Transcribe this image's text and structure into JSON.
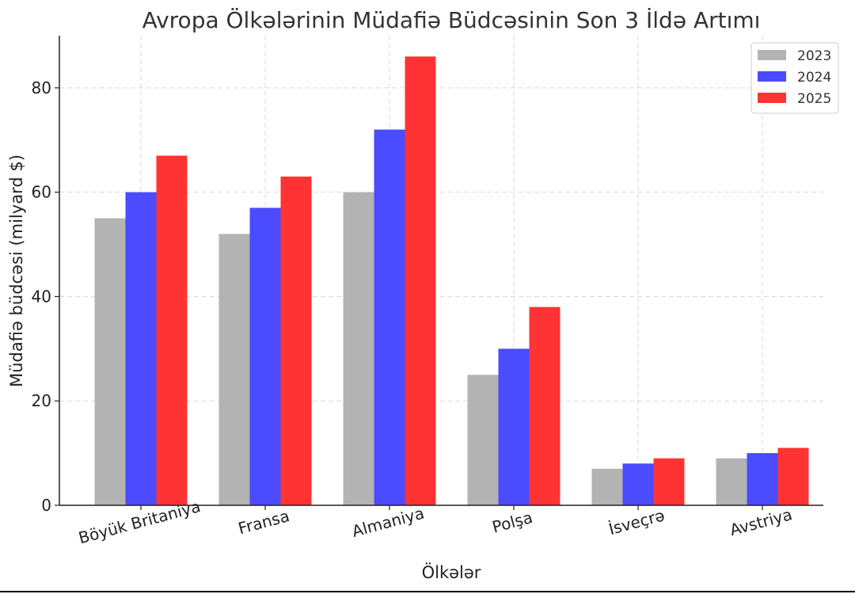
{
  "chart_data": {
    "type": "bar",
    "title": "Avropa Ölkələrinin Müdafiə Büdcəsinin Son 3 İldə Artımı",
    "xlabel": "Ölkələr",
    "ylabel": "Müdafiə büdcəsi (milyard $)",
    "categories": [
      "Böyük Britaniya",
      "Fransa",
      "Almaniya",
      "Polşa",
      "İsveçrə",
      "Avstriya"
    ],
    "series": [
      {
        "name": "2023",
        "color": "#b3b3b3",
        "values": [
          55,
          52,
          60,
          25,
          7,
          9
        ]
      },
      {
        "name": "2024",
        "color": "#4b4bff",
        "values": [
          60,
          57,
          72,
          30,
          8,
          10
        ]
      },
      {
        "name": "2025",
        "color": "#ff3333",
        "values": [
          67,
          63,
          86,
          38,
          9,
          11
        ]
      }
    ],
    "ylim": [
      0,
      90
    ],
    "yticks": [
      0,
      20,
      40,
      60,
      80
    ],
    "grid": true,
    "legend_position": "top-right"
  }
}
